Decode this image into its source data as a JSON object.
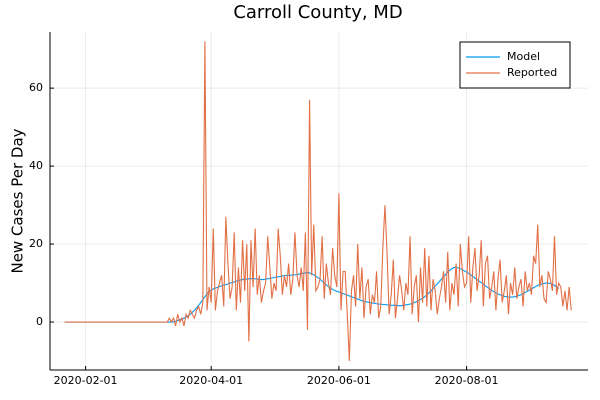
{
  "chart_data": {
    "type": "line",
    "title": "Carroll County, MD",
    "y_label": "New Cases Per Day",
    "x": [
      "2020-01-22",
      "2020-01-23",
      "2020-01-24",
      "2020-01-25",
      "2020-01-26",
      "2020-01-27",
      "2020-01-28",
      "2020-01-29",
      "2020-01-30",
      "2020-01-31",
      "2020-02-01",
      "2020-02-02",
      "2020-02-03",
      "2020-02-04",
      "2020-02-05",
      "2020-02-06",
      "2020-02-07",
      "2020-02-08",
      "2020-02-09",
      "2020-02-10",
      "2020-02-11",
      "2020-02-12",
      "2020-02-13",
      "2020-02-14",
      "2020-02-15",
      "2020-02-16",
      "2020-02-17",
      "2020-02-18",
      "2020-02-19",
      "2020-02-20",
      "2020-02-21",
      "2020-02-22",
      "2020-02-23",
      "2020-02-24",
      "2020-02-25",
      "2020-02-26",
      "2020-02-27",
      "2020-02-28",
      "2020-02-29",
      "2020-03-01",
      "2020-03-02",
      "2020-03-03",
      "2020-03-04",
      "2020-03-05",
      "2020-03-06",
      "2020-03-07",
      "2020-03-08",
      "2020-03-09",
      "2020-03-10",
      "2020-03-11",
      "2020-03-12",
      "2020-03-13",
      "2020-03-14",
      "2020-03-15",
      "2020-03-16",
      "2020-03-17",
      "2020-03-18",
      "2020-03-19",
      "2020-03-20",
      "2020-03-21",
      "2020-03-22",
      "2020-03-23",
      "2020-03-24",
      "2020-03-25",
      "2020-03-26",
      "2020-03-27",
      "2020-03-28",
      "2020-03-29",
      "2020-03-30",
      "2020-03-31",
      "2020-04-01",
      "2020-04-02",
      "2020-04-03",
      "2020-04-04",
      "2020-04-05",
      "2020-04-06",
      "2020-04-07",
      "2020-04-08",
      "2020-04-09",
      "2020-04-10",
      "2020-04-11",
      "2020-04-12",
      "2020-04-13",
      "2020-04-14",
      "2020-04-15",
      "2020-04-16",
      "2020-04-17",
      "2020-04-18",
      "2020-04-19",
      "2020-04-20",
      "2020-04-21",
      "2020-04-22",
      "2020-04-23",
      "2020-04-24",
      "2020-04-25",
      "2020-04-26",
      "2020-04-27",
      "2020-04-28",
      "2020-04-29",
      "2020-04-30",
      "2020-05-01",
      "2020-05-02",
      "2020-05-03",
      "2020-05-04",
      "2020-05-05",
      "2020-05-06",
      "2020-05-07",
      "2020-05-08",
      "2020-05-09",
      "2020-05-10",
      "2020-05-11",
      "2020-05-12",
      "2020-05-13",
      "2020-05-14",
      "2020-05-15",
      "2020-05-16",
      "2020-05-17",
      "2020-05-18",
      "2020-05-19",
      "2020-05-20",
      "2020-05-21",
      "2020-05-22",
      "2020-05-23",
      "2020-05-24",
      "2020-05-25",
      "2020-05-26",
      "2020-05-27",
      "2020-05-28",
      "2020-05-29",
      "2020-05-30",
      "2020-05-31",
      "2020-06-01",
      "2020-06-02",
      "2020-06-03",
      "2020-06-04",
      "2020-06-05",
      "2020-06-06",
      "2020-06-07",
      "2020-06-08",
      "2020-06-09",
      "2020-06-10",
      "2020-06-11",
      "2020-06-12",
      "2020-06-13",
      "2020-06-14",
      "2020-06-15",
      "2020-06-16",
      "2020-06-17",
      "2020-06-18",
      "2020-06-19",
      "2020-06-20",
      "2020-06-21",
      "2020-06-22",
      "2020-06-23",
      "2020-06-24",
      "2020-06-25",
      "2020-06-26",
      "2020-06-27",
      "2020-06-28",
      "2020-06-29",
      "2020-06-30",
      "2020-07-01",
      "2020-07-02",
      "2020-07-03",
      "2020-07-04",
      "2020-07-05",
      "2020-07-06",
      "2020-07-07",
      "2020-07-08",
      "2020-07-09",
      "2020-07-10",
      "2020-07-11",
      "2020-07-12",
      "2020-07-13",
      "2020-07-14",
      "2020-07-15",
      "2020-07-16",
      "2020-07-17",
      "2020-07-18",
      "2020-07-19",
      "2020-07-20",
      "2020-07-21",
      "2020-07-22",
      "2020-07-23",
      "2020-07-24",
      "2020-07-25",
      "2020-07-26",
      "2020-07-27",
      "2020-07-28",
      "2020-07-29",
      "2020-07-30",
      "2020-07-31",
      "2020-08-01",
      "2020-08-02",
      "2020-08-03",
      "2020-08-04",
      "2020-08-05",
      "2020-08-06",
      "2020-08-07",
      "2020-08-08",
      "2020-08-09",
      "2020-08-10",
      "2020-08-11",
      "2020-08-12",
      "2020-08-13",
      "2020-08-14",
      "2020-08-15",
      "2020-08-16",
      "2020-08-17",
      "2020-08-18",
      "2020-08-19",
      "2020-08-20",
      "2020-08-21",
      "2020-08-22",
      "2020-08-23",
      "2020-08-24",
      "2020-08-25",
      "2020-08-26",
      "2020-08-27",
      "2020-08-28",
      "2020-08-29",
      "2020-08-30",
      "2020-08-31",
      "2020-09-01",
      "2020-09-02",
      "2020-09-03",
      "2020-09-04",
      "2020-09-05",
      "2020-09-06",
      "2020-09-07",
      "2020-09-08",
      "2020-09-09",
      "2020-09-10",
      "2020-09-11",
      "2020-09-12",
      "2020-09-13",
      "2020-09-14",
      "2020-09-15",
      "2020-09-16",
      "2020-09-17",
      "2020-09-18",
      "2020-09-19",
      "2020-09-20"
    ],
    "series": [
      {
        "name": "Model",
        "color": "#009af9",
        "values": [
          0,
          0,
          0,
          0,
          0,
          0,
          0,
          0,
          0,
          0,
          0,
          0,
          0,
          0,
          0,
          0,
          0,
          0,
          0,
          0,
          0,
          0,
          0,
          0,
          0,
          0,
          0,
          0,
          0,
          0,
          0,
          0,
          0,
          0,
          0,
          0,
          0,
          0,
          0,
          0,
          0,
          0,
          0,
          0,
          0,
          0,
          0,
          0,
          0,
          0,
          0,
          0,
          0,
          0.2,
          0.4,
          0.6,
          0.8,
          1,
          1.3,
          1.6,
          2,
          2.5,
          3,
          3.6,
          4.3,
          5,
          5.8,
          6.5,
          7.2,
          7.8,
          8.2,
          8.5,
          8.7,
          8.9,
          9.1,
          9.3,
          9.5,
          9.6,
          9.8,
          10,
          10.1,
          10.3,
          10.5,
          10.6,
          10.8,
          10.9,
          11,
          11,
          11.1,
          11.1,
          11.2,
          11.1,
          11,
          11,
          10.9,
          10.9,
          11,
          11.1,
          11.2,
          11.3,
          11.4,
          11.5,
          11.6,
          11.7,
          11.8,
          11.9,
          12,
          12,
          12,
          12.1,
          12.1,
          12.2,
          12.3,
          12.4,
          12.5,
          12.6,
          12.7,
          12.6,
          12.4,
          12.1,
          11.8,
          11.4,
          11,
          10.5,
          10,
          9.5,
          9.1,
          8.7,
          8.4,
          8.1,
          7.9,
          7.7,
          7.5,
          7.3,
          7.1,
          6.9,
          6.7,
          6.5,
          6.3,
          6.1,
          5.9,
          5.7,
          5.5,
          5.3,
          5.2,
          5.1,
          5,
          4.9,
          4.8,
          4.7,
          4.6,
          4.6,
          4.5,
          4.5,
          4.4,
          4.4,
          4.3,
          4.3,
          4.3,
          4.2,
          4.2,
          4.2,
          4.3,
          4.4,
          4.5,
          4.6,
          4.8,
          5,
          5.2,
          5.5,
          5.8,
          6.1,
          6.5,
          7,
          7.5,
          8,
          8.6,
          9.2,
          9.8,
          10.4,
          11,
          11.6,
          12.2,
          12.8,
          13.3,
          13.7,
          14,
          14,
          13.9,
          13.7,
          13.4,
          13.1,
          12.8,
          12.5,
          12.1,
          11.7,
          11.3,
          10.9,
          10.5,
          10.1,
          9.7,
          9.3,
          8.9,
          8.5,
          8.1,
          7.8,
          7.5,
          7.2,
          7,
          6.8,
          6.6,
          6.5,
          6.4,
          6.4,
          6.4,
          6.5,
          6.6,
          6.8,
          7,
          7.3,
          7.6,
          7.9,
          8.2,
          8.5,
          8.8,
          9.1,
          9.4,
          9.6,
          9.8,
          9.9,
          10,
          10,
          9.9,
          9.7,
          9.4,
          9,
          8.6,
          null,
          null,
          null,
          null,
          null,
          null
        ]
      },
      {
        "name": "Reported",
        "color": "#e26f46",
        "values": [
          0,
          0,
          0,
          0,
          0,
          0,
          0,
          0,
          0,
          0,
          0,
          0,
          0,
          0,
          0,
          0,
          0,
          0,
          0,
          0,
          0,
          0,
          0,
          0,
          0,
          0,
          0,
          0,
          0,
          0,
          0,
          0,
          0,
          0,
          0,
          0,
          0,
          0,
          0,
          0,
          0,
          0,
          0,
          0,
          0,
          0,
          0,
          0,
          0,
          0,
          1,
          0,
          1,
          -1,
          2,
          0,
          1,
          -1,
          2,
          1,
          3,
          2,
          1,
          3,
          4,
          2,
          5,
          72,
          3,
          9,
          5,
          24,
          3,
          8,
          10,
          12,
          4,
          27,
          15,
          6,
          9,
          23,
          3,
          14,
          5,
          21,
          8,
          20,
          -5,
          21,
          9,
          24,
          7,
          12,
          5,
          8,
          10,
          22,
          14,
          6,
          10,
          8,
          24,
          17,
          7,
          12,
          9,
          15,
          7,
          11,
          23,
          12,
          9,
          14,
          8,
          23,
          -2,
          57,
          12,
          25,
          8,
          9,
          11,
          22,
          6,
          15,
          10,
          7,
          19,
          12,
          9,
          33,
          3,
          13,
          13,
          2,
          -10,
          8,
          12,
          4,
          20,
          6,
          14,
          1,
          9,
          11,
          2,
          7,
          5,
          13,
          1,
          4,
          19,
          30,
          18,
          2,
          7,
          16,
          1,
          6,
          12,
          8,
          3,
          10,
          7,
          22,
          2,
          9,
          12,
          0,
          14,
          5,
          19,
          4,
          17,
          3,
          11,
          8,
          2,
          6,
          9,
          13,
          5,
          18,
          3,
          10,
          7,
          15,
          4,
          20,
          13,
          9,
          10,
          22,
          5,
          14,
          19,
          8,
          12,
          21,
          4,
          15,
          17,
          6,
          9,
          13,
          3,
          11,
          16,
          5,
          8,
          12,
          2,
          10,
          7,
          14,
          6,
          9,
          11,
          4,
          13,
          8,
          10,
          7,
          17,
          15,
          25,
          9,
          12,
          6,
          5,
          13,
          11,
          8,
          22,
          7,
          10,
          9,
          4,
          8,
          3,
          9,
          3
        ]
      }
    ],
    "xlim": [
      "2020-01-15",
      "2020-09-28"
    ],
    "xticks": [
      "2020-02-01",
      "2020-04-01",
      "2020-06-01",
      "2020-08-01"
    ],
    "ylim": [
      -12.3,
      74.4
    ],
    "yticks": [
      0,
      20,
      40,
      60
    ],
    "grid": true,
    "legend": "top-right"
  }
}
